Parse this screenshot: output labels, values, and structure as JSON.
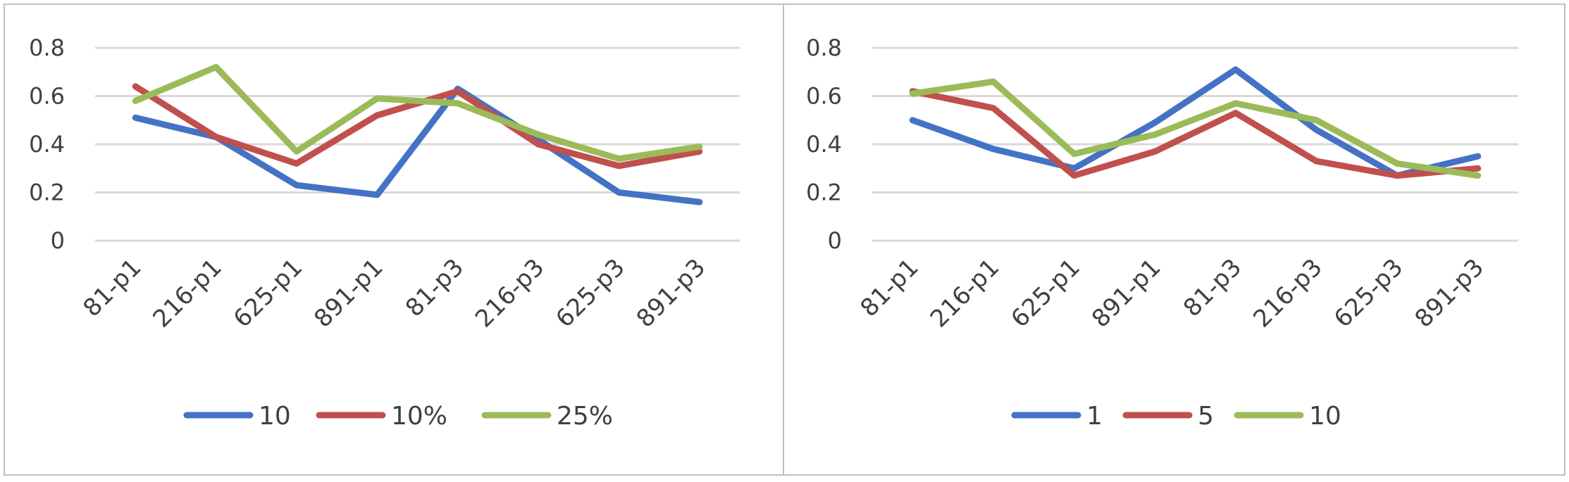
{
  "chart_data": [
    {
      "type": "line",
      "categories": [
        "81-p1",
        "216-p1",
        "625-p1",
        "891-p1",
        "81-p3",
        "216-p3",
        "625-p3",
        "891-p3"
      ],
      "ylim": [
        0,
        0.8
      ],
      "yticks": [
        "0",
        "0.2",
        "0.4",
        "0.6",
        "0.8"
      ],
      "grid": true,
      "legend_position": "bottom",
      "series": [
        {
          "name": "10",
          "color": "#4472C4",
          "values": [
            0.51,
            0.43,
            0.23,
            0.19,
            0.63,
            0.42,
            0.2,
            0.16
          ]
        },
        {
          "name": "10%",
          "color": "#C0504D",
          "values": [
            0.64,
            0.43,
            0.32,
            0.52,
            0.62,
            0.4,
            0.31,
            0.37
          ]
        },
        {
          "name": "25%",
          "color": "#9BBB59",
          "values": [
            0.58,
            0.72,
            0.37,
            0.59,
            0.57,
            0.44,
            0.34,
            0.39
          ]
        }
      ]
    },
    {
      "type": "line",
      "categories": [
        "81-p1",
        "216-p1",
        "625-p1",
        "891-p1",
        "81-p3",
        "216-p3",
        "625-p3",
        "891-p3"
      ],
      "ylim": [
        0,
        0.8
      ],
      "yticks": [
        "0",
        "0.2",
        "0.4",
        "0.6",
        "0.8"
      ],
      "grid": true,
      "legend_position": "bottom",
      "series": [
        {
          "name": "1",
          "color": "#4472C4",
          "values": [
            0.5,
            0.38,
            0.3,
            0.49,
            0.71,
            0.46,
            0.27,
            0.35
          ]
        },
        {
          "name": "5",
          "color": "#C0504D",
          "values": [
            0.62,
            0.55,
            0.27,
            0.37,
            0.53,
            0.33,
            0.27,
            0.3
          ]
        },
        {
          "name": "10",
          "color": "#9BBB59",
          "values": [
            0.61,
            0.66,
            0.36,
            0.44,
            0.57,
            0.5,
            0.32,
            0.27
          ]
        }
      ]
    }
  ]
}
